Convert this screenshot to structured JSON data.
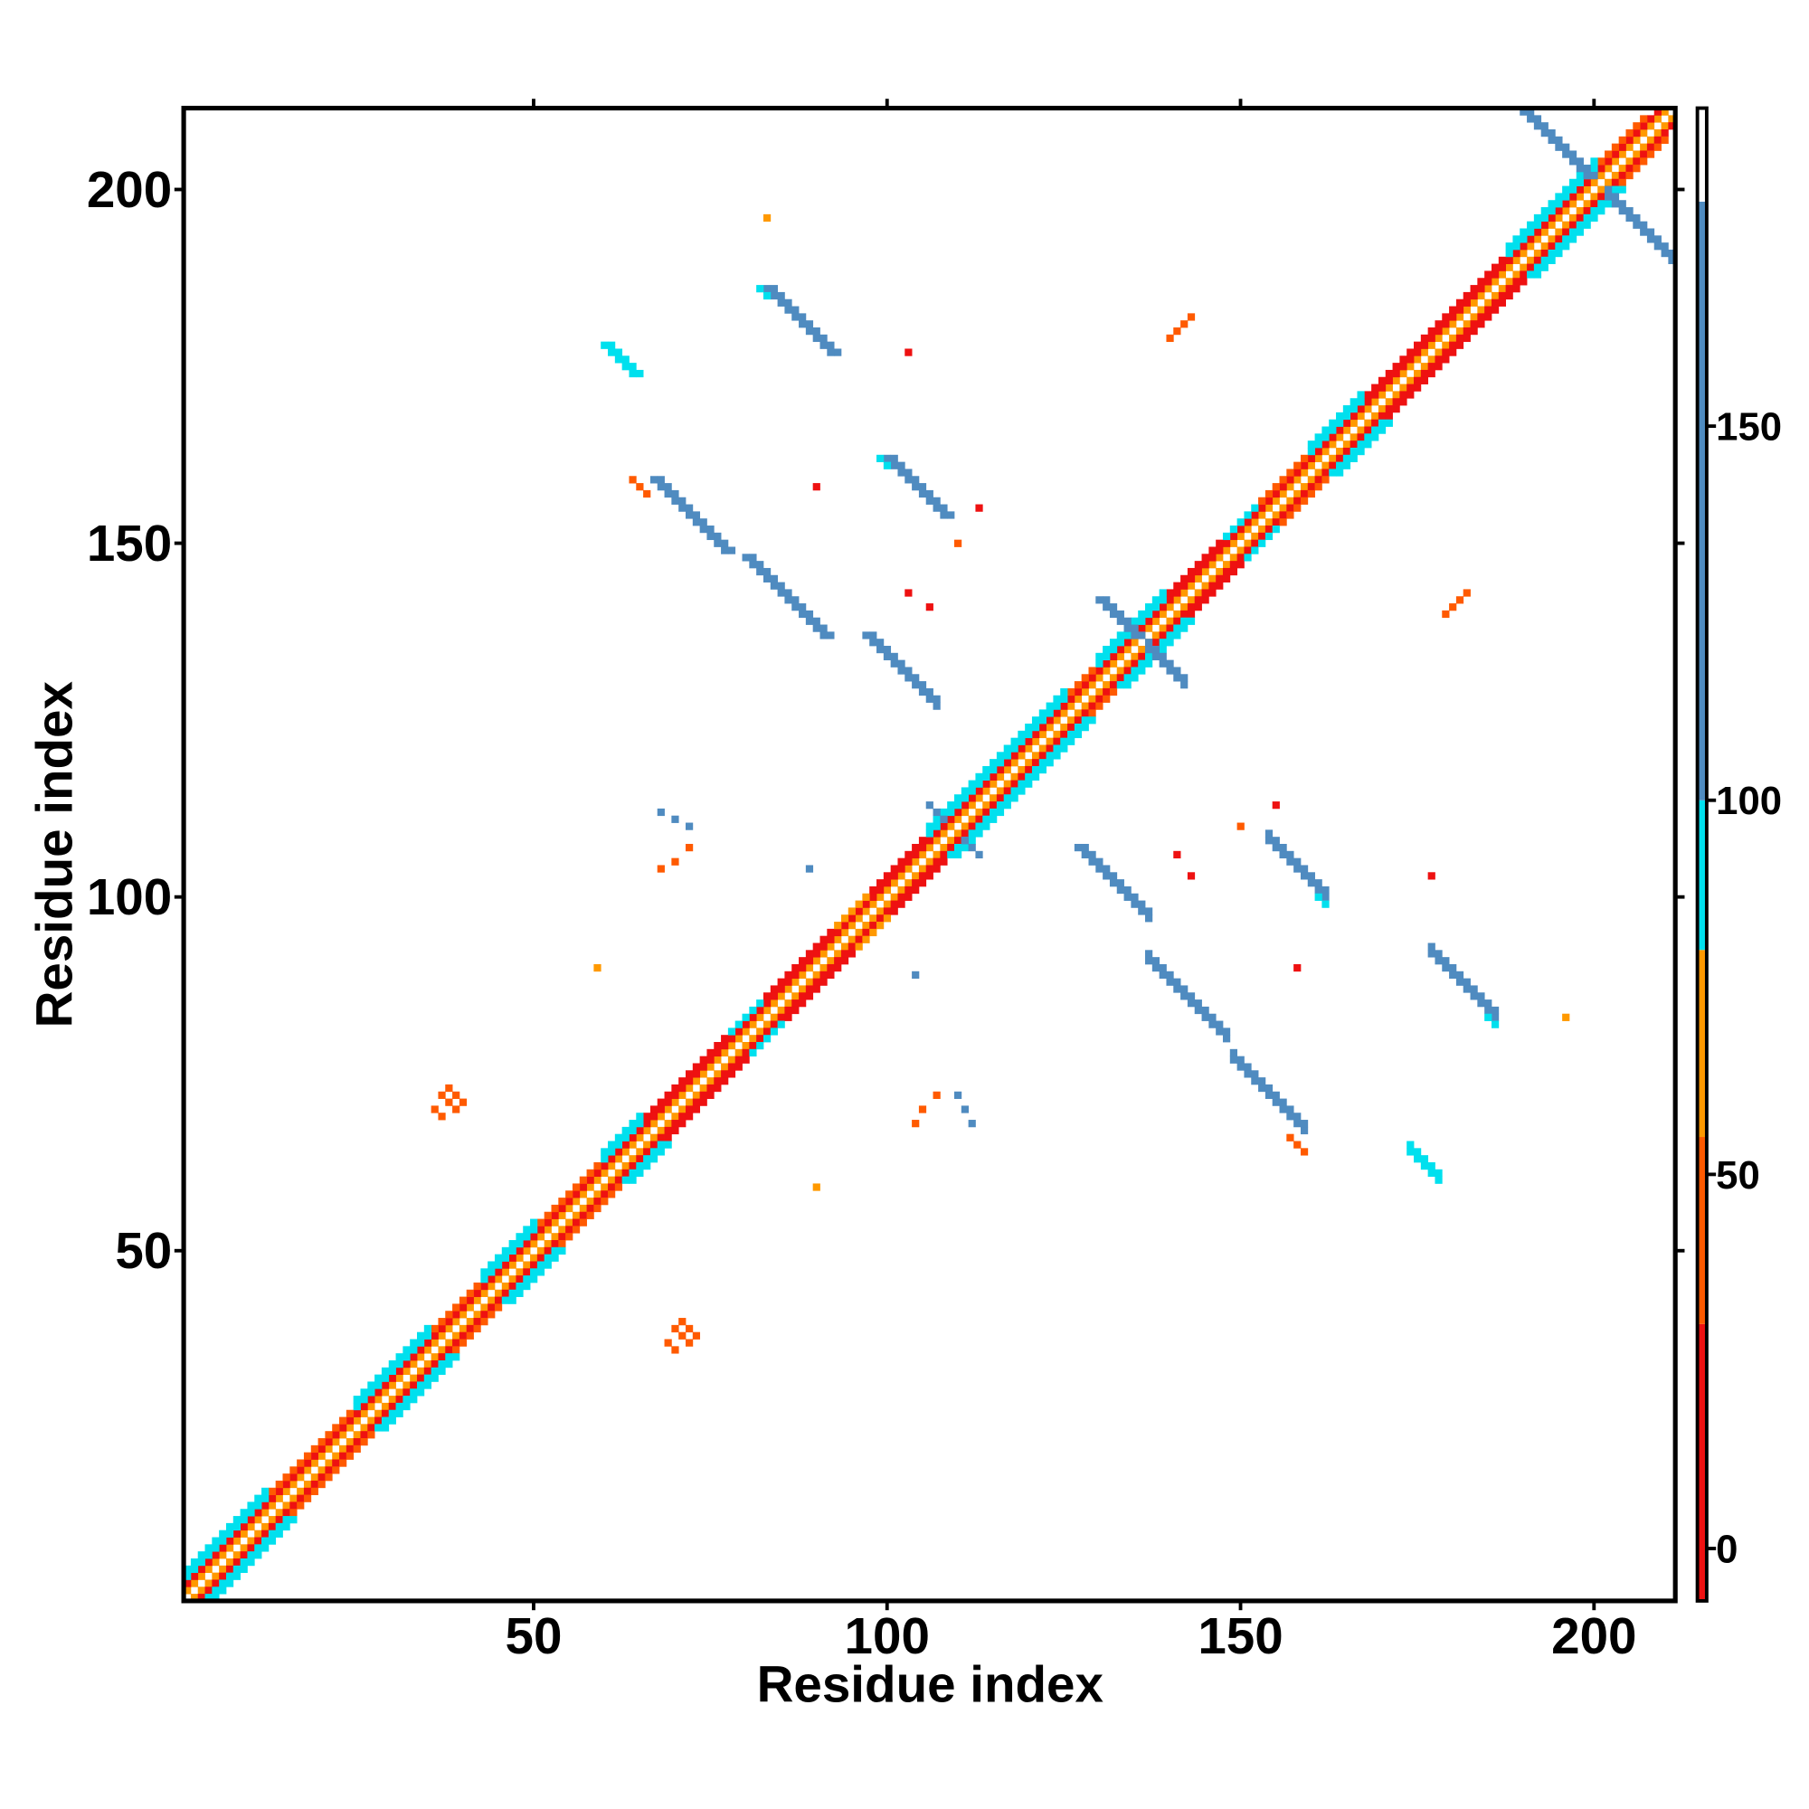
{
  "chart_data": {
    "type": "heatmap",
    "xlabel": "Residue index",
    "ylabel": "Residue index",
    "xlim": [
      0.5,
      211.5
    ],
    "ylim": [
      0.5,
      211.5
    ],
    "xticks": [
      50,
      100,
      150,
      200
    ],
    "yticks": [
      50,
      100,
      150,
      200
    ],
    "symmetric": true,
    "parallel_runs": [
      [
        1,
        2,
        210,
        65
      ],
      [
        1,
        3,
        209,
        12
      ],
      [
        1,
        4,
        12,
        90
      ],
      [
        13,
        16,
        12,
        40
      ],
      [
        25,
        28,
        11,
        90
      ],
      [
        36,
        39,
        7,
        40
      ],
      [
        43,
        46,
        8,
        90
      ],
      [
        51,
        54,
        9,
        40
      ],
      [
        60,
        63,
        6,
        90
      ],
      [
        66,
        69,
        12,
        15
      ],
      [
        78,
        81,
        5,
        90
      ],
      [
        83,
        86,
        10,
        15
      ],
      [
        93,
        96,
        5,
        65
      ],
      [
        98,
        101,
        8,
        15
      ],
      [
        106,
        109,
        20,
        90
      ],
      [
        126,
        129,
        4,
        40
      ],
      [
        130,
        133,
        10,
        90
      ],
      [
        140,
        143,
        8,
        15
      ],
      [
        148,
        151,
        5,
        90
      ],
      [
        153,
        156,
        7,
        40
      ],
      [
        160,
        163,
        8,
        90
      ],
      [
        168,
        171,
        20,
        15
      ],
      [
        188,
        191,
        13,
        90
      ],
      [
        201,
        204,
        7,
        40
      ],
      [
        1,
        5,
        12,
        95
      ],
      [
        25,
        29,
        11,
        95
      ],
      [
        43,
        47,
        8,
        95
      ],
      [
        60,
        64,
        6,
        95
      ],
      [
        106,
        110,
        20,
        95
      ],
      [
        130,
        134,
        10,
        95
      ],
      [
        160,
        164,
        8,
        95
      ],
      [
        188,
        192,
        13,
        95
      ],
      [
        140,
        179,
        4,
        45
      ]
    ],
    "antiparallel_runs": [
      [
        83,
        186,
        10,
        150
      ],
      [
        84,
        186,
        10,
        150
      ],
      [
        82,
        186,
        2,
        90
      ],
      [
        60,
        178,
        5,
        100
      ],
      [
        61,
        178,
        5,
        100
      ],
      [
        67,
        159,
        11,
        150
      ],
      [
        68,
        159,
        11,
        150
      ],
      [
        64,
        159,
        3,
        45
      ],
      [
        100,
        162,
        9,
        150
      ],
      [
        101,
        162,
        9,
        150
      ],
      [
        99,
        162,
        2,
        90
      ],
      [
        80,
        148,
        12,
        150
      ],
      [
        81,
        148,
        12,
        150
      ],
      [
        97,
        137,
        11,
        150
      ],
      [
        98,
        137,
        10,
        150
      ],
      [
        190,
        211,
        10,
        150
      ],
      [
        191,
        211,
        10,
        150
      ],
      [
        130,
        142,
        6,
        150
      ],
      [
        131,
        142,
        6,
        150
      ],
      [
        106,
        113,
        3,
        150
      ],
      [
        36,
        70,
        2,
        45
      ],
      [
        37,
        72,
        3,
        45
      ],
      [
        38,
        73,
        3,
        45
      ],
      [
        83,
        196,
        1,
        60
      ],
      [
        103,
        177,
        1,
        10
      ],
      [
        90,
        158,
        1,
        10
      ],
      [
        113,
        155,
        1,
        10
      ],
      [
        110,
        150,
        1,
        40
      ],
      [
        103,
        143,
        1,
        15
      ],
      [
        106,
        141,
        1,
        15
      ],
      [
        68,
        112,
        1,
        150
      ],
      [
        70,
        111,
        1,
        150
      ],
      [
        72,
        110,
        1,
        150
      ],
      [
        68,
        104,
        1,
        45
      ],
      [
        70,
        105,
        1,
        45
      ],
      [
        72,
        107,
        1,
        45
      ],
      [
        89,
        104,
        1,
        150
      ],
      [
        59,
        90,
        1,
        60
      ]
    ],
    "colorbar": {
      "lim": [
        -7,
        192.5
      ],
      "ticks": [
        0,
        50,
        100,
        150
      ],
      "bounds": [
        -7,
        30,
        55,
        80,
        100,
        180,
        192.5
      ],
      "colors": [
        "#ee1111",
        "#ff5a00",
        "#ff9900",
        "#00e0ee",
        "#4f8bc0",
        "#ffffff"
      ]
    }
  }
}
